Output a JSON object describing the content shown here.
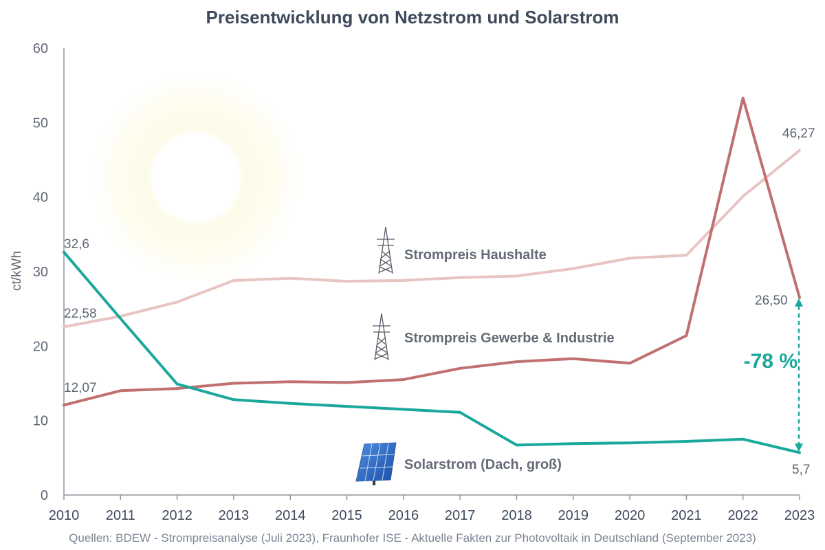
{
  "title": "Preisentwicklung von Netzstrom und Solarstrom",
  "source": "Quellen: BDEW - Strompreisanalyse (Juli 2023), Fraunhofer ISE - Aktuelle Fakten zur Photovoltaik in Deutschland (September 2023)",
  "chart_data": {
    "type": "line",
    "title": "Preisentwicklung von Netzstrom und Solarstrom",
    "xlabel": "",
    "ylabel": "ct/kWh",
    "ylim": [
      0,
      60
    ],
    "yticks": [
      "0",
      "10",
      "20",
      "30",
      "40",
      "50",
      "60"
    ],
    "categories": [
      "2010",
      "2011",
      "2012",
      "2013",
      "2014",
      "2015",
      "2016",
      "2017",
      "2018",
      "2019",
      "2020",
      "2021",
      "2022",
      "2023"
    ],
    "series": [
      {
        "name": "Strompreis Haushalte",
        "color": "#e8c4c2",
        "values": [
          22.58,
          24.0,
          25.9,
          28.8,
          29.1,
          28.7,
          28.8,
          29.2,
          29.4,
          30.4,
          31.8,
          32.2,
          40.1,
          46.27
        ],
        "icon": "power-pylon-icon"
      },
      {
        "name": "Strompreis Gewerbe & Industrie",
        "color": "#c0706f",
        "values": [
          12.07,
          14.0,
          14.3,
          15.0,
          15.2,
          15.1,
          15.5,
          17.0,
          17.9,
          18.3,
          17.7,
          21.4,
          53.3,
          26.5
        ],
        "icon": "power-pylon-icon"
      },
      {
        "name": "Solarstrom (Dach, groß)",
        "color": "#1ba89c",
        "values": [
          32.6,
          23.7,
          14.9,
          12.8,
          12.3,
          11.9,
          11.5,
          11.1,
          6.7,
          6.9,
          7.0,
          7.2,
          7.5,
          5.7
        ],
        "icon": "solar-panel-icon"
      }
    ],
    "data_labels": {
      "haushalte_start": "22,58",
      "haushalte_end": "46,27",
      "gewerbe_start": "12,07",
      "gewerbe_end": "26,50",
      "solar_start": "32,6",
      "solar_end": "5,7"
    },
    "annotation": {
      "text": "-78 %",
      "color": "#1ba89c",
      "from_value": 26.5,
      "to_value": 5.7,
      "category": "2023"
    }
  }
}
